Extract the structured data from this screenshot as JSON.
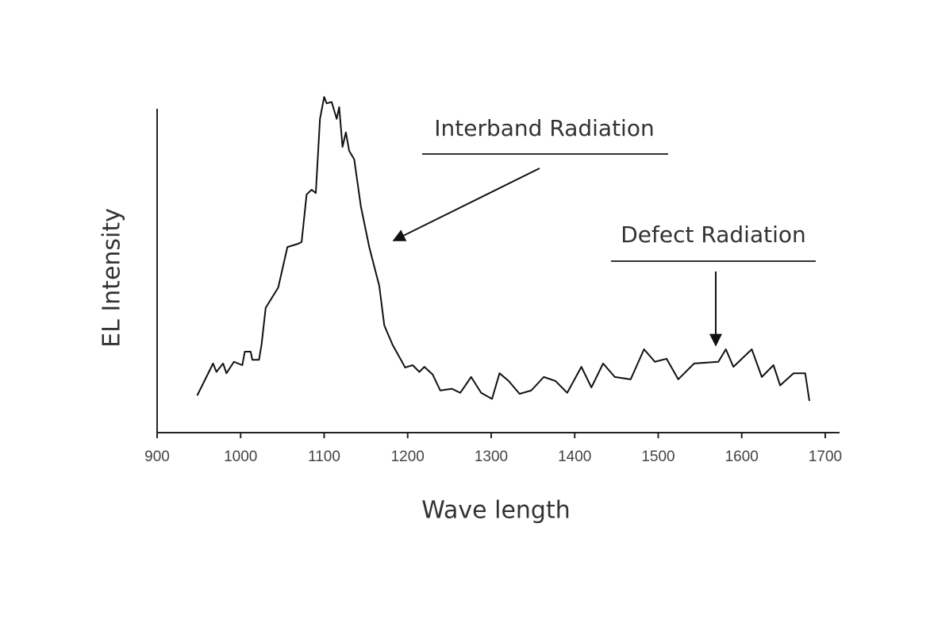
{
  "chart_data": {
    "type": "line",
    "x_label": "Wave length",
    "y_label": "EL Intensity",
    "annotations": [
      "Interband Radiation",
      "Defect Radiation"
    ],
    "xlim": [
      900,
      1700
    ],
    "xticks": [
      900,
      1000,
      1100,
      1200,
      1300,
      1400,
      1500,
      1600,
      1700
    ],
    "ylim": [
      0,
      100
    ],
    "series": [
      {
        "color": "#111111",
        "x": [
          948,
          967,
          971,
          979,
          983,
          992,
          1002,
          1005,
          1012,
          1014,
          1022,
          1025,
          1030,
          1045,
          1056,
          1069,
          1073,
          1079,
          1085,
          1090,
          1095,
          1100,
          1103,
          1109,
          1115,
          1118,
          1122,
          1126,
          1130,
          1136,
          1144,
          1154,
          1166,
          1172,
          1182,
          1197,
          1206,
          1214,
          1220,
          1230,
          1239,
          1253,
          1263,
          1276,
          1288,
          1301,
          1310,
          1321,
          1334,
          1348,
          1363,
          1377,
          1391,
          1408,
          1420,
          1434,
          1448,
          1467,
          1483,
          1496,
          1510,
          1524,
          1543,
          1572,
          1581,
          1590,
          1612,
          1624,
          1638,
          1646,
          1662,
          1676,
          1681
        ],
        "values": [
          11,
          20.5,
          18,
          20.5,
          17.6,
          21,
          20,
          24,
          24,
          21.6,
          21.6,
          26,
          37,
          43,
          55,
          56,
          56.5,
          70.6,
          72,
          71,
          93,
          99.5,
          97.6,
          98,
          93,
          96.5,
          84.7,
          89,
          83.5,
          81,
          67,
          55,
          43.5,
          31.8,
          26,
          19.3,
          20,
          18,
          19.5,
          17.2,
          12.5,
          13,
          11.8,
          16.5,
          11.8,
          10,
          17.6,
          15.3,
          11.5,
          12.5,
          16.5,
          15.3,
          11.8,
          19.5,
          13.4,
          20.5,
          16.5,
          15.8,
          24.7,
          21,
          21.9,
          15.8,
          20.5,
          21,
          24.7,
          19.5,
          24.7,
          16.5,
          20,
          14,
          17.6,
          17.6,
          9.4
        ]
      }
    ]
  }
}
